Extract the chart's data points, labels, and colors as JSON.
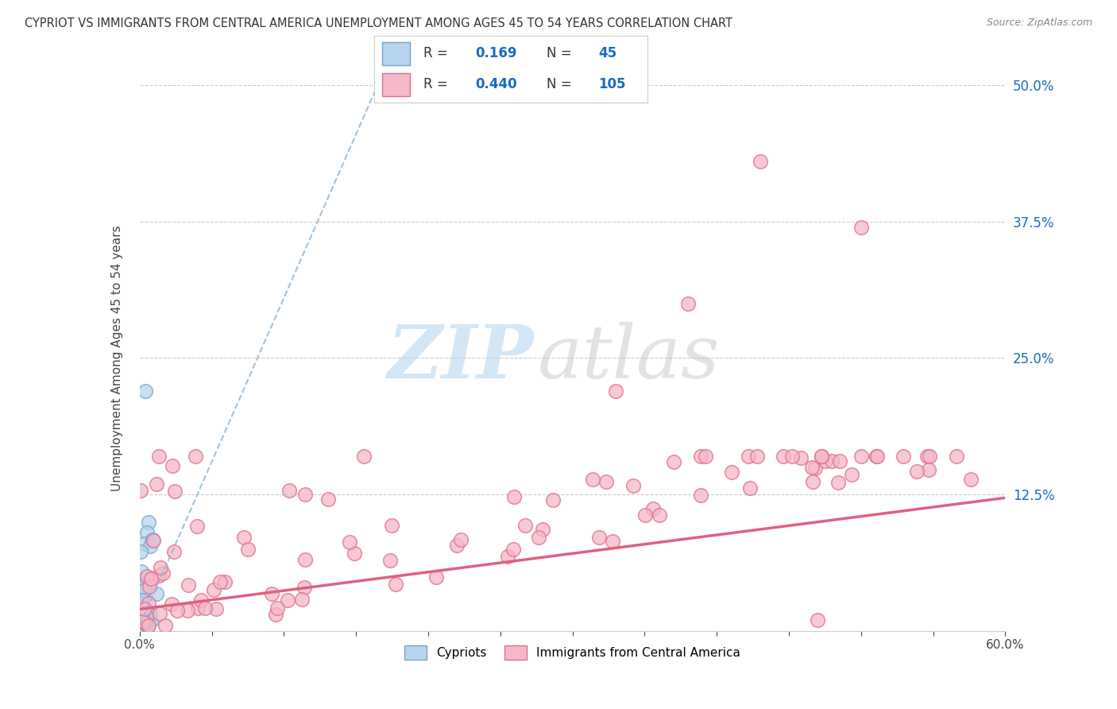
{
  "title": "CYPRIOT VS IMMIGRANTS FROM CENTRAL AMERICA UNEMPLOYMENT AMONG AGES 45 TO 54 YEARS CORRELATION CHART",
  "source": "Source: ZipAtlas.com",
  "ylabel": "Unemployment Among Ages 45 to 54 years",
  "xlim": [
    0,
    0.6
  ],
  "ylim": [
    0,
    0.5
  ],
  "ytick_right_labels": [
    "50.0%",
    "37.5%",
    "25.0%",
    "12.5%"
  ],
  "ytick_right_values": [
    0.5,
    0.375,
    0.25,
    0.125
  ],
  "group1_name": "Cypriots",
  "group1_color": "#b8d4ec",
  "group1_edge_color": "#6fa8d0",
  "group1_R": 0.169,
  "group1_N": 45,
  "group2_name": "Immigrants from Central America",
  "group2_color": "#f5b8c8",
  "group2_edge_color": "#e07090",
  "group2_R": 0.44,
  "group2_N": 105,
  "trend1_color": "#90b8d8",
  "trend2_color": "#e06080",
  "legend_R_color": "#1a6bc4",
  "watermark_zip": "ZIP",
  "watermark_atlas": "atlas",
  "background_color": "#ffffff",
  "grid_color": "#cccccc"
}
